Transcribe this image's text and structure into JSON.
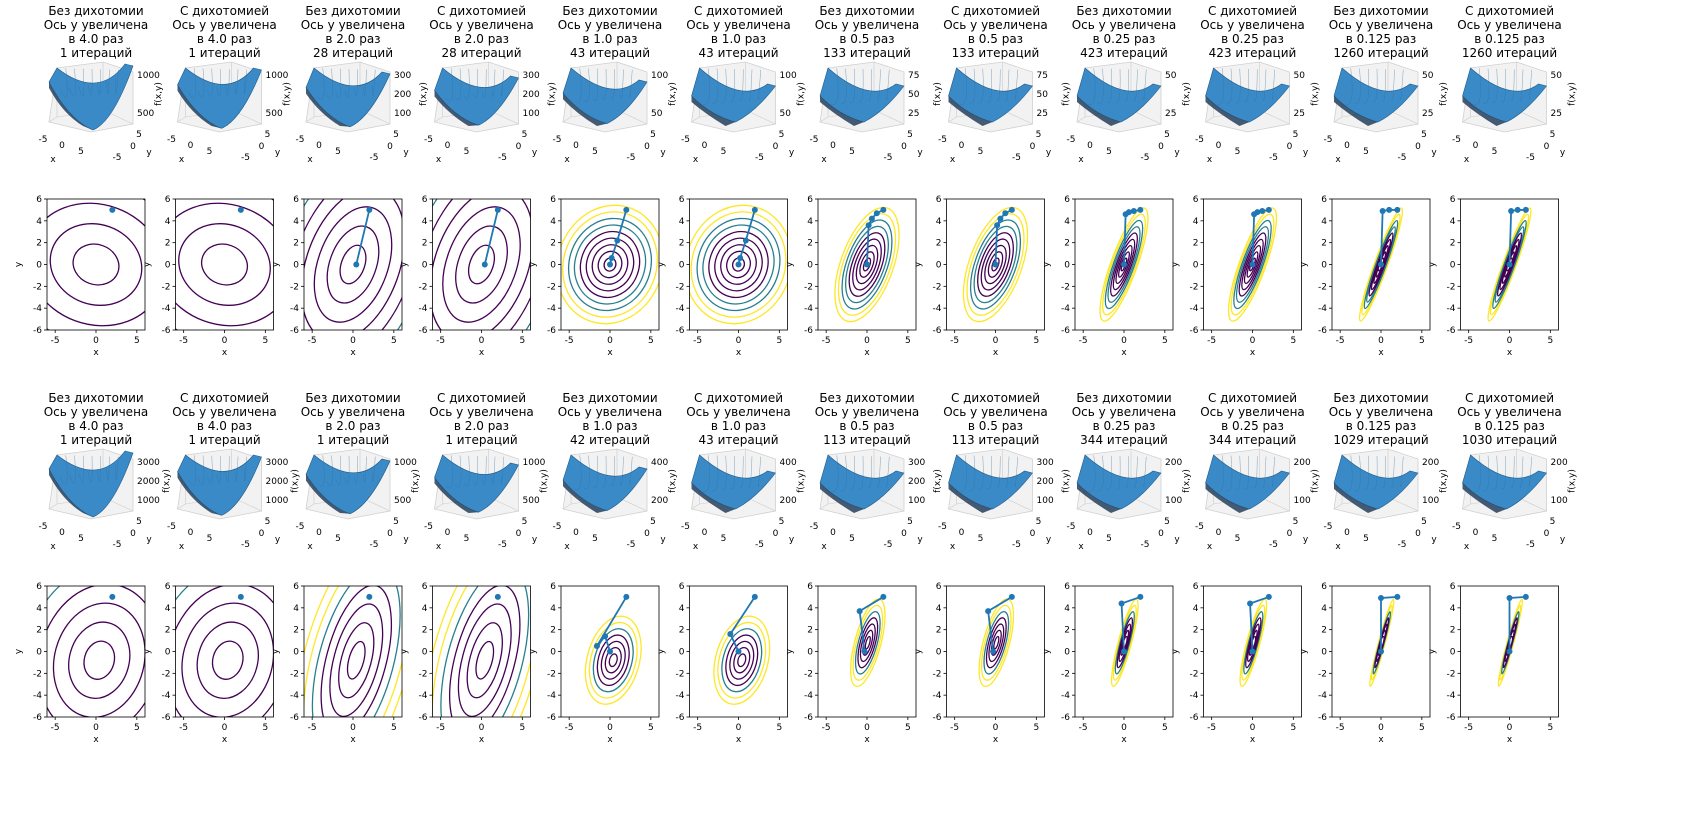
{
  "figure": {
    "blocks": [
      {
        "titles": [
          [
            "Без дихотомии",
            "Ось y увеличена",
            "в 4.0 раз",
            "1 итераций"
          ],
          [
            "С дихотомией",
            "Ось y увеличена",
            "в 4.0 раз",
            "1 итераций"
          ],
          [
            "Без дихотомии",
            "Ось y увеличена",
            "в 2.0 раз",
            "28 итераций"
          ],
          [
            "С дихотомией",
            "Ось y увеличена",
            "в 2.0 раз",
            "28 итераций"
          ],
          [
            "Без дихотомии",
            "Ось y увеличена",
            "в 1.0 раз",
            "43 итераций"
          ],
          [
            "С дихотомией",
            "Ось y увеличена",
            "в 1.0 раз",
            "43 итераций"
          ],
          [
            "Без дихотомии",
            "Ось y увеличена",
            "в 0.5 раз",
            "133 итераций"
          ],
          [
            "С дихотомией",
            "Ось y увеличена",
            "в 0.5 раз",
            "133 итераций"
          ],
          [
            "Без дихотомии",
            "Ось y увеличена",
            "в 0.25 раз",
            "423 итераций"
          ],
          [
            "С дихотомией",
            "Ось y увеличена",
            "в 0.25 раз",
            "423 итераций"
          ],
          [
            "Без дихотомии",
            "Ось y увеличена",
            "в 0.125 раз",
            "1260 итераций"
          ],
          [
            "С дихотомией",
            "Ось y увеличена",
            "в 0.125 раз",
            "1260 итераций"
          ]
        ],
        "surface_zticks": [
          [
            "500",
            "1000"
          ],
          [
            "500",
            "1000"
          ],
          [
            "100",
            "200",
            "300"
          ],
          [
            "100",
            "200",
            "300"
          ],
          [
            "50",
            "100"
          ],
          [
            "50",
            "100"
          ],
          [
            "25",
            "50",
            "75"
          ],
          [
            "25",
            "50",
            "75"
          ],
          [
            "25",
            "50"
          ],
          [
            "25",
            "50"
          ],
          [
            "25",
            "50"
          ],
          [
            "25",
            "50"
          ]
        ]
      },
      {
        "titles": [
          [
            "Без дихотомии",
            "Ось y увеличена",
            "в 4.0 раз",
            "1 итераций"
          ],
          [
            "С дихотомией",
            "Ось y увеличена",
            "в 4.0 раз",
            "1 итераций"
          ],
          [
            "Без дихотомии",
            "Ось y увеличена",
            "в 2.0 раз",
            "1 итераций"
          ],
          [
            "С дихотомией",
            "Ось y увеличена",
            "в 2.0 раз",
            "1 итераций"
          ],
          [
            "Без дихотомии",
            "Ось y увеличена",
            "в 1.0 раз",
            "42 итераций"
          ],
          [
            "С дихотомией",
            "Ось y увеличена",
            "в 1.0 раз",
            "43 итераций"
          ],
          [
            "Без дихотомии",
            "Ось y увеличена",
            "в 0.5 раз",
            "113 итераций"
          ],
          [
            "С дихотомией",
            "Ось y увеличена",
            "в 0.5 раз",
            "113 итераций"
          ],
          [
            "Без дихотомии",
            "Ось y увеличена",
            "в 0.25 раз",
            "344 итераций"
          ],
          [
            "С дихотомией",
            "Ось y увеличена",
            "в 0.25 раз",
            "344 итераций"
          ],
          [
            "Без дихотомии",
            "Ось y увеличена",
            "в 0.125 раз",
            "1029 итераций"
          ],
          [
            "С дихотомией",
            "Ось y увеличена",
            "в 0.125 раз",
            "1030 итераций"
          ]
        ],
        "surface_zticks": [
          [
            "1000",
            "2000",
            "3000"
          ],
          [
            "1000",
            "2000",
            "3000"
          ],
          [
            "500",
            "1000"
          ],
          [
            "500",
            "1000"
          ],
          [
            "200",
            "400"
          ],
          [
            "200",
            "400"
          ],
          [
            "100",
            "200",
            "300"
          ],
          [
            "100",
            "200",
            "300"
          ],
          [
            "100",
            "200"
          ],
          [
            "100",
            "200"
          ],
          [
            "100",
            "200"
          ],
          [
            "100",
            "200"
          ]
        ]
      }
    ],
    "surface_axis_ticks": [
      "-5",
      "0",
      "5"
    ],
    "surface_labels": {
      "x": "x",
      "y": "y",
      "z": "f(x,y)"
    }
  },
  "chart_data": {
    "type": "contour",
    "colors": {
      "path": "#1f77b4",
      "low_level": "#440154",
      "mid_level": "#21918c",
      "high_level": "#fde725"
    },
    "xlabel": "x",
    "ylabel": "y",
    "xlim": [
      -6,
      6
    ],
    "ylim": [
      -6,
      6
    ],
    "xticks": [
      "-5",
      "0",
      "5"
    ],
    "yticks": [
      "-6",
      "-4",
      "-2",
      "0",
      "2",
      "4",
      "6"
    ],
    "contour_rows": [
      {
        "panels": [
          {
            "path": [
              [
                2,
                5
              ]
            ]
          },
          {
            "path": [
              [
                2,
                5
              ]
            ]
          },
          {
            "path": [
              [
                2,
                5
              ],
              [
                0.4,
                0
              ]
            ]
          },
          {
            "path": [
              [
                2,
                5
              ],
              [
                0.4,
                0
              ]
            ]
          },
          {
            "path": [
              [
                2,
                5
              ],
              [
                0.9,
                2.2
              ],
              [
                0.2,
                0.6
              ],
              [
                0,
                0
              ]
            ]
          },
          {
            "path": [
              [
                2,
                5
              ],
              [
                0.9,
                2.2
              ],
              [
                0.2,
                0.6
              ],
              [
                0,
                0
              ]
            ]
          },
          {
            "path": [
              [
                2,
                5
              ],
              [
                1.2,
                4.7
              ],
              [
                0.6,
                4.2
              ],
              [
                0.2,
                3.6
              ],
              [
                0,
                0
              ]
            ]
          },
          {
            "path": [
              [
                2,
                5
              ],
              [
                1.2,
                4.7
              ],
              [
                0.6,
                4.2
              ],
              [
                0.2,
                3.6
              ],
              [
                0,
                0
              ]
            ]
          },
          {
            "path": [
              [
                2,
                5
              ],
              [
                1.2,
                4.9
              ],
              [
                0.6,
                4.8
              ],
              [
                0.2,
                4.6
              ],
              [
                0,
                0
              ]
            ]
          },
          {
            "path": [
              [
                2,
                5
              ],
              [
                1.2,
                4.9
              ],
              [
                0.6,
                4.8
              ],
              [
                0.2,
                4.6
              ],
              [
                0,
                0
              ]
            ]
          },
          {
            "path": [
              [
                2,
                5
              ],
              [
                1,
                5
              ],
              [
                0.2,
                4.9
              ],
              [
                0,
                0
              ]
            ]
          },
          {
            "path": [
              [
                2,
                5
              ],
              [
                1,
                5
              ],
              [
                0.2,
                4.9
              ],
              [
                0,
                0
              ]
            ]
          }
        ]
      },
      {
        "panels": [
          {
            "path": [
              [
                2,
                5
              ]
            ]
          },
          {
            "path": [
              [
                2,
                5
              ]
            ]
          },
          {
            "path": [
              [
                2,
                5
              ]
            ]
          },
          {
            "path": [
              [
                2,
                5
              ]
            ]
          },
          {
            "path": [
              [
                2,
                5
              ],
              [
                -1.6,
                0.5
              ],
              [
                -0.6,
                1.4
              ],
              [
                0,
                0
              ]
            ]
          },
          {
            "path": [
              [
                2,
                5
              ],
              [
                -1,
                1.6
              ],
              [
                0,
                0
              ]
            ]
          },
          {
            "path": [
              [
                2,
                5
              ],
              [
                -0.9,
                3.7
              ],
              [
                -0.3,
                0
              ]
            ]
          },
          {
            "path": [
              [
                2,
                5
              ],
              [
                -0.9,
                3.7
              ],
              [
                -0.3,
                0
              ]
            ]
          },
          {
            "path": [
              [
                2,
                5
              ],
              [
                -0.3,
                4.4
              ],
              [
                0,
                0
              ]
            ]
          },
          {
            "path": [
              [
                2,
                5
              ],
              [
                -0.3,
                4.4
              ],
              [
                0,
                0
              ]
            ]
          },
          {
            "path": [
              [
                2,
                5
              ],
              [
                0,
                4.9
              ],
              [
                0,
                0
              ]
            ]
          },
          {
            "path": [
              [
                2,
                5
              ],
              [
                0,
                4.9
              ],
              [
                0,
                0
              ]
            ]
          }
        ]
      }
    ]
  }
}
